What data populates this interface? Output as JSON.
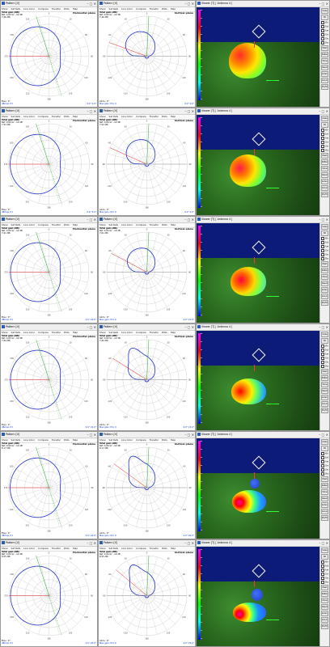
{
  "windows": {
    "pattern_title": "Pattern",
    "pattern_mode": "[V]",
    "viewer_title": "Viewer  [T]",
    "viewer_sub": "[ Antenna 4 ]",
    "controls": "–  □  ✕"
  },
  "menu": [
    "Show",
    "Set Refs",
    "Line Color",
    "Compare",
    "Transfer",
    "Plots",
    "Help"
  ],
  "horizontal": {
    "plane": "Horizontal plane",
    "gain_label": "Total gain (dBi)",
    "ref_line": "Ref: 0.00  Gr: -10 dB",
    "status": "Elev.: 0°",
    "foot_left": "dBmax ±3",
    "foot_right": "Max gain: Phi: 0"
  },
  "vertical": {
    "plane": "Vertical plane",
    "gain_label": "Total gain (dBi)",
    "ref_line": "Ref: 0.00  Gr: -10 dB",
    "status": "Azim.: 0°",
    "foot_left": "Max gain: Phi: 0",
    "foot_right": "Elev.: 19°"
  },
  "viewer": {
    "colorbar_label": "dBi",
    "buttons": [
      "Scale",
      "3D",
      "Mesh",
      "Pattern",
      "Show",
      "Reset",
      "Antenna",
      "Ground",
      "Phi/Th"
    ],
    "checks": [
      "Wire",
      "Solid",
      "Axes",
      "Grid",
      "Ground",
      "Sky"
    ]
  },
  "panels": [
    {
      "gain": "7.46 dBi",
      "angles": "0.0°  0.0°"
    },
    {
      "gain": "7.52 dBi",
      "angles": "0.0°  5.0°"
    },
    {
      "gain": "7.61 dBi",
      "angles": "0.0°  10.0°"
    },
    {
      "gain": "7.84 dBi",
      "angles": "0.0°  15.0°"
    },
    {
      "gain": "8.17 dBi",
      "angles": "0.0°  20.0°"
    },
    {
      "gain": "8.55 dBi",
      "angles": "0.0°  25.0°"
    }
  ],
  "colors": {
    "pattern": "#1e2fc8",
    "grid": "#bdbdbd",
    "green_ray": "#22aa22",
    "red_ray": "#e02020",
    "sky": "#0c1a78"
  }
}
